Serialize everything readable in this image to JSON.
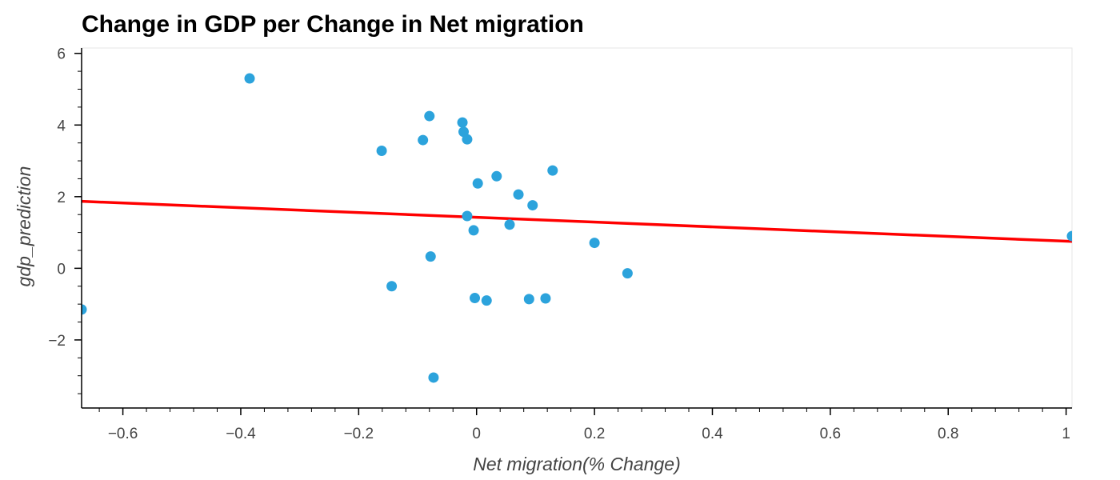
{
  "chart_data": {
    "type": "scatter",
    "title": "Change in GDP per Change in Net migration",
    "xlabel": "Net migration(% Change)",
    "ylabel": "gdp_prediction",
    "xlim": [
      -0.67,
      1.01
    ],
    "ylim": [
      -3.9,
      6.15
    ],
    "x_ticks": [
      -0.6,
      -0.4,
      -0.2,
      0,
      0.2,
      0.4,
      0.6,
      0.8,
      1
    ],
    "x_tick_labels": [
      "−0.6",
      "−0.4",
      "−0.2",
      "0",
      "0.2",
      "0.4",
      "0.6",
      "0.8",
      "1"
    ],
    "y_ticks": [
      -2,
      0,
      2,
      4,
      6
    ],
    "y_tick_labels": [
      "−2",
      "0",
      "2",
      "4",
      "6"
    ],
    "grid": false,
    "colors": {
      "points": "#2ca3dc",
      "trend_line": "#ff0000",
      "axis": "#000000",
      "frame": "#e5e5e5"
    },
    "series": [
      {
        "type": "scatter",
        "points": [
          {
            "x": -0.67,
            "y": -1.15
          },
          {
            "x": -0.385,
            "y": 5.3
          },
          {
            "x": -0.161,
            "y": 3.28
          },
          {
            "x": -0.144,
            "y": -0.5
          },
          {
            "x": -0.091,
            "y": 3.58
          },
          {
            "x": -0.08,
            "y": 4.25
          },
          {
            "x": -0.078,
            "y": 0.33
          },
          {
            "x": -0.073,
            "y": -3.05
          },
          {
            "x": -0.024,
            "y": 4.07
          },
          {
            "x": -0.022,
            "y": 3.81
          },
          {
            "x": -0.016,
            "y": 3.6
          },
          {
            "x": -0.016,
            "y": 1.46
          },
          {
            "x": -0.005,
            "y": 1.06
          },
          {
            "x": -0.003,
            "y": -0.83
          },
          {
            "x": 0.002,
            "y": 2.37
          },
          {
            "x": 0.017,
            "y": -0.9
          },
          {
            "x": 0.034,
            "y": 2.57
          },
          {
            "x": 0.056,
            "y": 1.22
          },
          {
            "x": 0.071,
            "y": 2.06
          },
          {
            "x": 0.089,
            "y": -0.86
          },
          {
            "x": 0.095,
            "y": 1.76
          },
          {
            "x": 0.117,
            "y": -0.84
          },
          {
            "x": 0.129,
            "y": 2.73
          },
          {
            "x": 0.2,
            "y": 0.71
          },
          {
            "x": 0.256,
            "y": -0.14
          },
          {
            "x": 1.01,
            "y": 0.9
          }
        ]
      },
      {
        "type": "line",
        "x": [
          -0.67,
          1.01
        ],
        "y": [
          1.87,
          0.75
        ]
      }
    ]
  }
}
